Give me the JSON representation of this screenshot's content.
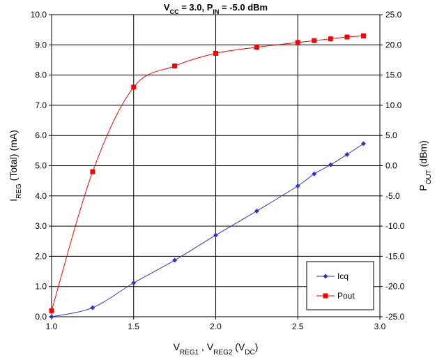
{
  "chart_data": {
    "type": "line",
    "title": {
      "v": "V",
      "v_sub": "CC",
      "mid": " = 3.0, P",
      "p_sub": "IN",
      "end": " = -5.0 dBm"
    },
    "xlabel": {
      "a": "V",
      "a_sub": "REG1",
      "b": " , V",
      "b_sub": "REG2",
      "c": " (V",
      "c_sub": "DC",
      "d": ")"
    },
    "ylabel_left": {
      "a": "I",
      "a_sub": "REG",
      "b": " (Total)  (mA)"
    },
    "ylabel_right": {
      "a": "P",
      "a_sub": "OUT",
      "b": " (dBm)"
    },
    "xlim": [
      1.0,
      3.0
    ],
    "ylim_left": [
      0.0,
      10.0
    ],
    "ylim_right": [
      -25.0,
      25.0
    ],
    "x_ticks": [
      "1.0",
      "1.5",
      "2.0",
      "2.5",
      "3.0"
    ],
    "y_ticks_left": [
      "0.0",
      "1.0",
      "2.0",
      "3.0",
      "4.0",
      "5.0",
      "6.0",
      "7.0",
      "8.0",
      "9.0",
      "10.0"
    ],
    "y_ticks_right": [
      "-25.0",
      "-20.0",
      "-15.0",
      "-10.0",
      "-5.0",
      "0.0",
      "5.0",
      "10.0",
      "15.0",
      "20.0",
      "25.0"
    ],
    "grid": "major x and y",
    "legend_position": "bottom-right",
    "series": [
      {
        "name": "Icq",
        "axis": "left",
        "color": "#3333cc",
        "marker": "diamond",
        "x": [
          1.0,
          1.25,
          1.5,
          1.75,
          2.0,
          2.25,
          2.5,
          2.6,
          2.7,
          2.8,
          2.9
        ],
        "values": [
          0.0,
          0.3,
          1.12,
          1.87,
          2.7,
          3.5,
          4.33,
          4.73,
          5.03,
          5.37,
          5.73
        ]
      },
      {
        "name": "Pout",
        "axis": "right",
        "color": "#ff0000",
        "marker": "square",
        "x": [
          1.0,
          1.25,
          1.5,
          1.75,
          2.0,
          2.25,
          2.5,
          2.6,
          2.7,
          2.8,
          2.9
        ],
        "values": [
          -24.0,
          -1.0,
          13.0,
          16.5,
          18.6,
          19.6,
          20.4,
          20.7,
          21.0,
          21.3,
          21.5
        ]
      }
    ]
  }
}
